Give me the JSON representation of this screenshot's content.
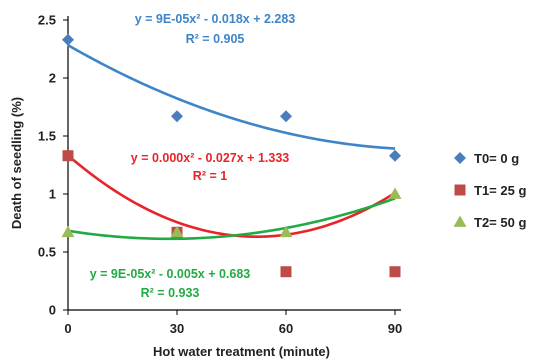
{
  "chart_data": {
    "type": "scatter",
    "xlabel": "Hot water treatment (minute)",
    "ylabel": "Death of seedling (%)",
    "x_ticks": [
      0,
      30,
      60,
      90
    ],
    "y_ticks": [
      0,
      0.5,
      1,
      1.5,
      2,
      2.5
    ],
    "y_tick_labels": [
      "0",
      "0.5",
      "1",
      "1.5",
      "2",
      "2.5"
    ],
    "xlim": [
      0,
      90
    ],
    "ylim": [
      0,
      2.5
    ],
    "grid": false,
    "legend_position": "right",
    "series": [
      {
        "name": "T0= 0 g",
        "marker": "diamond",
        "color": "#4a7ebb",
        "x": [
          0,
          30,
          60,
          90
        ],
        "y": [
          2.33,
          1.67,
          1.67,
          1.33
        ],
        "trend": {
          "type": "polynomial",
          "coefficients": [
            9e-05,
            -0.018,
            2.283
          ],
          "equation": "y = 9E-05x² - 0.018x + 2.283",
          "r2_label": "R² = 0.905"
        }
      },
      {
        "name": "T1= 25 g",
        "marker": "square",
        "color": "#be4b48",
        "x": [
          0,
          30,
          60,
          90
        ],
        "y": [
          1.33,
          0.67,
          0.33,
          0.33
        ],
        "trend": {
          "type": "polynomial",
          "coefficients": [
            0.00026,
            -0.027,
            1.333
          ],
          "equation": "y = 0.000x² - 0.027x + 1.333",
          "r2_label": "R² = 1"
        }
      },
      {
        "name": "T2= 50 g",
        "marker": "triangle",
        "color": "#9bbb59",
        "x": [
          0,
          30,
          60,
          90
        ],
        "y": [
          0.67,
          0.67,
          0.67,
          1.0
        ],
        "trend": {
          "type": "polynomial",
          "coefficients": [
            9e-05,
            -0.005,
            0.683
          ],
          "equation": "y = 9E-05x² - 0.005x + 0.683",
          "r2_label": "R² = 0.933"
        }
      }
    ],
    "trend_colors": {
      "T0= 0 g": "#3d85c6",
      "T1= 25 g": "#e8232a",
      "T2= 50 g": "#22aa44"
    }
  }
}
